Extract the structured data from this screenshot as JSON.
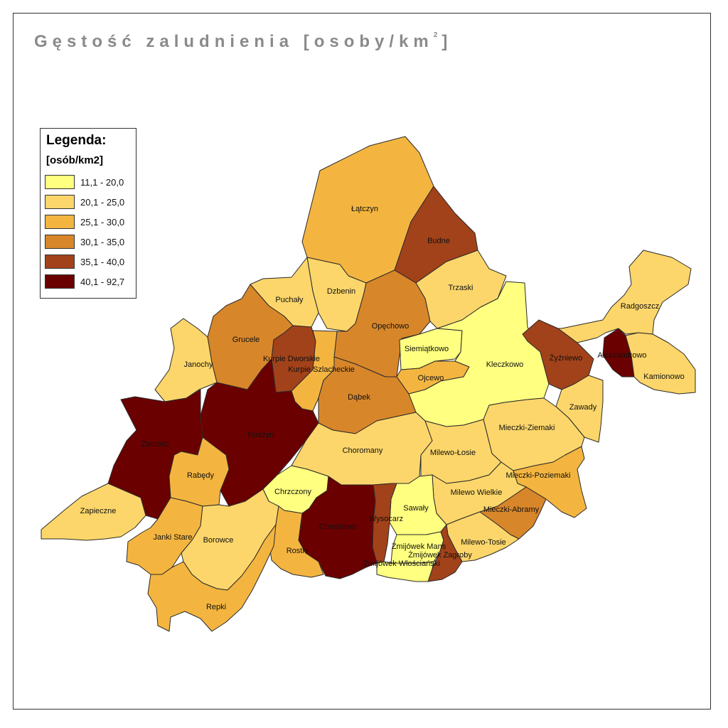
{
  "title_main": "Gęstość zaludnienia [osoby/km",
  "title_sup": "2",
  "title_end": "]",
  "legend": {
    "title": "Legenda:",
    "unit": "[osób/km2]",
    "classes": [
      {
        "label": "11,1 - 20,0",
        "color": "#ffff80"
      },
      {
        "label": "20,1 - 25,0",
        "color": "#fcd66a"
      },
      {
        "label": "25,1 - 30,0",
        "color": "#f4b540"
      },
      {
        "label": "30,1 - 35,0",
        "color": "#d8862a"
      },
      {
        "label": "35,1 - 40,0",
        "color": "#a2421a"
      },
      {
        "label": "40,1 - 92,7",
        "color": "#6b0000"
      }
    ]
  },
  "regions": [
    {
      "name": "Łątczyn",
      "class": 2
    },
    {
      "name": "Budne",
      "class": 4
    },
    {
      "name": "Trzaski",
      "class": 1
    },
    {
      "name": "Dzbenin",
      "class": 1
    },
    {
      "name": "Puchały",
      "class": 1
    },
    {
      "name": "Opęchowo",
      "class": 3
    },
    {
      "name": "Grucele",
      "class": 3
    },
    {
      "name": "Kurpie Dworskie",
      "class": 4
    },
    {
      "name": "Kurpie Szlacheckie",
      "class": 2
    },
    {
      "name": "Siemiątkowo",
      "class": 0
    },
    {
      "name": "Ojcewo",
      "class": 2
    },
    {
      "name": "Kleczkowo",
      "class": 0
    },
    {
      "name": "Żyźniewo",
      "class": 4
    },
    {
      "name": "Radgoszcz",
      "class": 1
    },
    {
      "name": "Aleksandrowo",
      "class": 5
    },
    {
      "name": "Kamionowo",
      "class": 1
    },
    {
      "name": "Janochy",
      "class": 1
    },
    {
      "name": "Dąbek",
      "class": 3
    },
    {
      "name": "Zawady",
      "class": 1
    },
    {
      "name": "Troszyn",
      "class": 5
    },
    {
      "name": "Zamość",
      "class": 5
    },
    {
      "name": "Mieczki-Ziemaki",
      "class": 1
    },
    {
      "name": "Choromany",
      "class": 1
    },
    {
      "name": "Milewo-Łosie",
      "class": 1
    },
    {
      "name": "Rabędy",
      "class": 2
    },
    {
      "name": "Mieczki-Poziemaki",
      "class": 2
    },
    {
      "name": "Chrzczony",
      "class": 0
    },
    {
      "name": "Milewo Wielkie",
      "class": 1
    },
    {
      "name": "Zapieczne",
      "class": 1
    },
    {
      "name": "Sawały",
      "class": 0
    },
    {
      "name": "Mieczki-Abramy",
      "class": 3
    },
    {
      "name": "Wysocarz",
      "class": 4
    },
    {
      "name": "Chrostowo",
      "class": 5
    },
    {
      "name": "Janki Stare",
      "class": 2
    },
    {
      "name": "Borowce",
      "class": 1
    },
    {
      "name": "Milewo-Tosie",
      "class": 1
    },
    {
      "name": "Żmijówek Mans",
      "class": 0
    },
    {
      "name": "Żmijówek Zagroby",
      "class": 4
    },
    {
      "name": "Rostki",
      "class": 2
    },
    {
      "name": "Żmijówek Włościański",
      "class": 0
    },
    {
      "name": "Repki",
      "class": 2
    }
  ]
}
